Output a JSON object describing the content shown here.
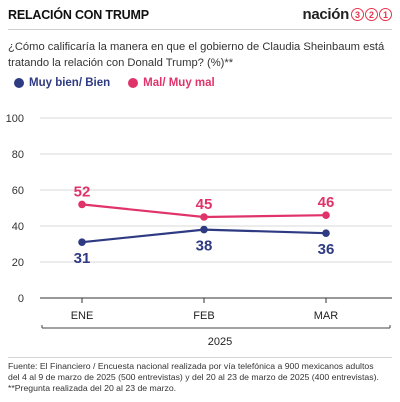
{
  "header": {
    "title": "RELACIÓN CON TRUMP",
    "logo_word": "nación",
    "logo_digits": [
      "3",
      "2",
      "1"
    ]
  },
  "question": "¿Cómo calificaría la manera en que el gobierno de Claudia Sheinbaum está tratando la relación con Donald Trump? (%)**",
  "colors": {
    "series_good": "#2e3a82",
    "series_bad": "#e0336a",
    "accent_logo": "#e8334b"
  },
  "chart_data": {
    "type": "line",
    "categories": [
      "ENE",
      "FEB",
      "MAR"
    ],
    "xlabel": "2025",
    "ylabel": "",
    "ylim": [
      0,
      100
    ],
    "yticks": [
      0,
      20,
      40,
      60,
      80,
      100
    ],
    "grid": true,
    "legend": "top-left",
    "series": [
      {
        "name": "Muy bien/ Bien",
        "values": [
          31,
          38,
          36
        ],
        "color": "#2e3a82",
        "label_position": "below"
      },
      {
        "name": "Mal/ Muy mal",
        "values": [
          52,
          45,
          46
        ],
        "color": "#e0336a",
        "label_position": "above"
      }
    ]
  },
  "footer": {
    "line1": "Fuente: El Financiero / Encuesta nacional realizada por vía telefónica a 900 mexicanos adultos",
    "line2": "del 4 al 9 de marzo de 2025 (500 entrevistas)  y del 20 al 23 de marzo de 2025  (400 entrevistas).",
    "line3": "**Pregunta realizada del 20 al 23 de marzo."
  }
}
